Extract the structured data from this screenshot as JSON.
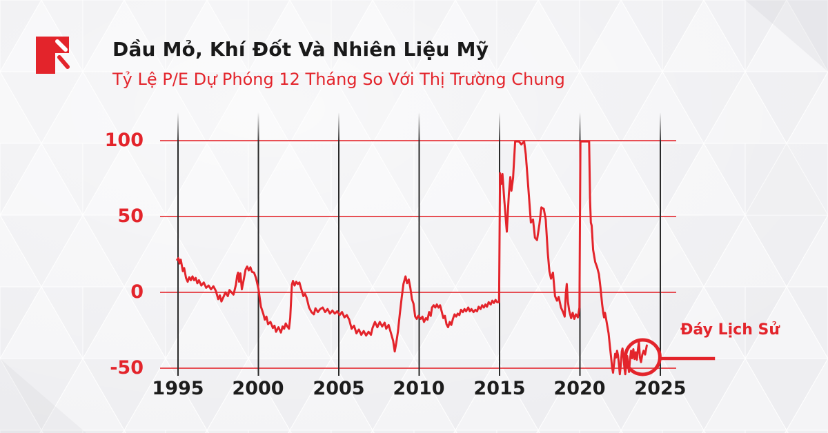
{
  "header": {
    "title": "Dầu Mỏ, Khí Đốt Và Nhiên Liệu Mỹ",
    "subtitle": "Tỷ Lệ P/E Dự Phóng 12 Tháng So Với Thị Trường Chung"
  },
  "colors": {
    "accent_red": "#e3242b",
    "text_dark": "#191919",
    "gridline_red": "rgba(227,37,44,0.8)",
    "axis_line_black": "#2a2a2a",
    "background": "#f1f1f3"
  },
  "chart_data": {
    "type": "line",
    "title": "Dầu Mỏ, Khí Đốt Và Nhiên Liệu Mỹ",
    "subtitle": "Tỷ Lệ P/E Dự Phóng 12 Tháng So Với Thị Trường Chung",
    "xlabel": "",
    "ylabel": "",
    "grid": true,
    "legend": false,
    "xlim": [
      1994.6,
      2028.0
    ],
    "ylim": [
      -57,
      120
    ],
    "y_ticks": [
      "100",
      "50",
      "0",
      "-50"
    ],
    "y_values": [
      100,
      50,
      0,
      -50
    ],
    "x_ticks": [
      "1995",
      "2000",
      "2005",
      "2010",
      "2015",
      "2020",
      "2025"
    ],
    "x_values": [
      1995,
      2000,
      2005,
      2010,
      2015,
      2020,
      2025
    ],
    "annotation": {
      "label": "Đáy Lịch Sử",
      "x": 2023.9,
      "y": -42.7,
      "leader_end_x": 2028.4
    },
    "series": [
      {
        "name": "pe-relative-percent",
        "color": "#e3242b",
        "points": [
          [
            1994.95,
            21.5
          ],
          [
            1995.02,
            22.5
          ],
          [
            1995.1,
            19
          ],
          [
            1995.17,
            21.5
          ],
          [
            1995.3,
            14
          ],
          [
            1995.38,
            16
          ],
          [
            1995.5,
            9.5
          ],
          [
            1995.6,
            7
          ],
          [
            1995.7,
            10
          ],
          [
            1995.8,
            8
          ],
          [
            1995.9,
            10.5
          ],
          [
            1996.0,
            8
          ],
          [
            1996.1,
            9.5
          ],
          [
            1996.2,
            6
          ],
          [
            1996.3,
            8
          ],
          [
            1996.45,
            4.5
          ],
          [
            1996.6,
            6.5
          ],
          [
            1996.75,
            3
          ],
          [
            1996.9,
            4.5
          ],
          [
            1997.05,
            2
          ],
          [
            1997.2,
            4
          ],
          [
            1997.35,
            1
          ],
          [
            1997.5,
            -4.5
          ],
          [
            1997.6,
            -2
          ],
          [
            1997.7,
            -6
          ],
          [
            1997.85,
            -2.5
          ],
          [
            1997.95,
            0
          ],
          [
            1998.1,
            -2.5
          ],
          [
            1998.2,
            1.5
          ],
          [
            1998.45,
            -1.5
          ],
          [
            1998.6,
            5
          ],
          [
            1998.68,
            11
          ],
          [
            1998.74,
            13
          ],
          [
            1998.8,
            7
          ],
          [
            1998.88,
            12.5
          ],
          [
            1998.97,
            2
          ],
          [
            1999.1,
            9
          ],
          [
            1999.2,
            15
          ],
          [
            1999.3,
            17
          ],
          [
            1999.4,
            14.5
          ],
          [
            1999.5,
            16.5
          ],
          [
            1999.6,
            13.5
          ],
          [
            1999.73,
            13
          ],
          [
            1999.85,
            9.5
          ],
          [
            2000.0,
            2.5
          ],
          [
            2000.16,
            -9.5
          ],
          [
            2000.3,
            -14
          ],
          [
            2000.4,
            -18
          ],
          [
            2000.5,
            -16
          ],
          [
            2000.6,
            -21
          ],
          [
            2000.75,
            -19.5
          ],
          [
            2000.9,
            -23.5
          ],
          [
            2001.0,
            -22
          ],
          [
            2001.1,
            -26
          ],
          [
            2001.25,
            -23
          ],
          [
            2001.4,
            -26.5
          ],
          [
            2001.5,
            -22.5
          ],
          [
            2001.6,
            -24
          ],
          [
            2001.7,
            -20.5
          ],
          [
            2001.8,
            -22.5
          ],
          [
            2001.9,
            -24
          ],
          [
            2001.98,
            -17
          ],
          [
            2002.08,
            5
          ],
          [
            2002.15,
            7.5
          ],
          [
            2002.25,
            4.5
          ],
          [
            2002.35,
            7
          ],
          [
            2002.45,
            5.5
          ],
          [
            2002.55,
            6.5
          ],
          [
            2002.67,
            2
          ],
          [
            2002.8,
            -2.5
          ],
          [
            2002.9,
            -1
          ],
          [
            2003.0,
            -3.5
          ],
          [
            2003.15,
            -10
          ],
          [
            2003.3,
            -13
          ],
          [
            2003.45,
            -14.5
          ],
          [
            2003.55,
            -10.5
          ],
          [
            2003.7,
            -13
          ],
          [
            2003.85,
            -11
          ],
          [
            2004.0,
            -10
          ],
          [
            2004.15,
            -13
          ],
          [
            2004.3,
            -11
          ],
          [
            2004.45,
            -14
          ],
          [
            2004.6,
            -12
          ],
          [
            2004.75,
            -14
          ],
          [
            2004.9,
            -12.5
          ],
          [
            2005.05,
            -15
          ],
          [
            2005.2,
            -13
          ],
          [
            2005.35,
            -16.5
          ],
          [
            2005.5,
            -15
          ],
          [
            2005.65,
            -18
          ],
          [
            2005.8,
            -24
          ],
          [
            2005.95,
            -22
          ],
          [
            2006.1,
            -27
          ],
          [
            2006.25,
            -24.5
          ],
          [
            2006.4,
            -28
          ],
          [
            2006.55,
            -25.5
          ],
          [
            2006.7,
            -28.5
          ],
          [
            2006.85,
            -26
          ],
          [
            2007.0,
            -28
          ],
          [
            2007.1,
            -23.5
          ],
          [
            2007.25,
            -19.5
          ],
          [
            2007.4,
            -23
          ],
          [
            2007.55,
            -19.5
          ],
          [
            2007.7,
            -22.5
          ],
          [
            2007.85,
            -20
          ],
          [
            2007.95,
            -24
          ],
          [
            2008.1,
            -21.5
          ],
          [
            2008.25,
            -27
          ],
          [
            2008.38,
            -32
          ],
          [
            2008.48,
            -39
          ],
          [
            2008.58,
            -33
          ],
          [
            2008.68,
            -26
          ],
          [
            2008.8,
            -14
          ],
          [
            2008.92,
            -3
          ],
          [
            2009.02,
            5.5
          ],
          [
            2009.15,
            10.5
          ],
          [
            2009.25,
            6
          ],
          [
            2009.35,
            8.5
          ],
          [
            2009.45,
            3
          ],
          [
            2009.55,
            -4.5
          ],
          [
            2009.65,
            -7.5
          ],
          [
            2009.75,
            -16
          ],
          [
            2009.85,
            -17.5
          ],
          [
            2009.95,
            -15.5
          ],
          [
            2010.1,
            -17.5
          ],
          [
            2010.2,
            -16
          ],
          [
            2010.3,
            -19.5
          ],
          [
            2010.42,
            -17
          ],
          [
            2010.52,
            -18
          ],
          [
            2010.62,
            -13
          ],
          [
            2010.72,
            -15.5
          ],
          [
            2010.8,
            -10
          ],
          [
            2010.9,
            -8.5
          ],
          [
            2011.0,
            -10
          ],
          [
            2011.1,
            -8
          ],
          [
            2011.2,
            -10
          ],
          [
            2011.3,
            -8.5
          ],
          [
            2011.4,
            -12.5
          ],
          [
            2011.5,
            -17
          ],
          [
            2011.6,
            -15.5
          ],
          [
            2011.7,
            -21
          ],
          [
            2011.8,
            -23
          ],
          [
            2011.9,
            -19.5
          ],
          [
            2012.0,
            -21.5
          ],
          [
            2012.1,
            -17.5
          ],
          [
            2012.2,
            -14.5
          ],
          [
            2012.3,
            -16
          ],
          [
            2012.4,
            -14
          ],
          [
            2012.5,
            -15
          ],
          [
            2012.6,
            -11.5
          ],
          [
            2012.72,
            -13
          ],
          [
            2012.82,
            -11
          ],
          [
            2012.92,
            -12.5
          ],
          [
            2013.05,
            -10
          ],
          [
            2013.15,
            -12.5
          ],
          [
            2013.25,
            -11
          ],
          [
            2013.38,
            -13
          ],
          [
            2013.5,
            -11.5
          ],
          [
            2013.6,
            -12.5
          ],
          [
            2013.7,
            -9.5
          ],
          [
            2013.82,
            -11
          ],
          [
            2013.92,
            -8.5
          ],
          [
            2014.02,
            -10
          ],
          [
            2014.12,
            -8
          ],
          [
            2014.22,
            -9.5
          ],
          [
            2014.32,
            -6.5
          ],
          [
            2014.45,
            -8
          ],
          [
            2014.55,
            -5.5
          ],
          [
            2014.65,
            -7
          ],
          [
            2014.75,
            -5
          ],
          [
            2014.85,
            -6.5
          ],
          [
            2014.97,
            -6.5
          ],
          [
            2015.03,
            78.5
          ],
          [
            2015.1,
            71.5
          ],
          [
            2015.18,
            78
          ],
          [
            2015.3,
            60
          ],
          [
            2015.45,
            40
          ],
          [
            2015.58,
            65
          ],
          [
            2015.67,
            76
          ],
          [
            2015.74,
            67
          ],
          [
            2015.84,
            75.5
          ],
          [
            2015.97,
            99.5
          ],
          [
            2016.2,
            99.5
          ],
          [
            2016.35,
            97.5
          ],
          [
            2016.53,
            99.5
          ],
          [
            2016.63,
            91
          ],
          [
            2016.78,
            70
          ],
          [
            2016.95,
            46
          ],
          [
            2017.08,
            48
          ],
          [
            2017.2,
            36
          ],
          [
            2017.33,
            34.5
          ],
          [
            2017.48,
            45
          ],
          [
            2017.6,
            56
          ],
          [
            2017.75,
            55
          ],
          [
            2017.87,
            48
          ],
          [
            2018.0,
            26
          ],
          [
            2018.1,
            14
          ],
          [
            2018.2,
            9
          ],
          [
            2018.32,
            13
          ],
          [
            2018.45,
            -2.5
          ],
          [
            2018.57,
            -5.5
          ],
          [
            2018.68,
            -3
          ],
          [
            2018.82,
            -10
          ],
          [
            2018.95,
            -13
          ],
          [
            2019.05,
            -16
          ],
          [
            2019.12,
            -1
          ],
          [
            2019.18,
            5.5
          ],
          [
            2019.25,
            -6
          ],
          [
            2019.33,
            -12
          ],
          [
            2019.45,
            -17
          ],
          [
            2019.55,
            -13.5
          ],
          [
            2019.65,
            -17.5
          ],
          [
            2019.75,
            -14.5
          ],
          [
            2019.87,
            -16.5
          ],
          [
            2019.97,
            -10
          ],
          [
            2020.03,
            99.5
          ],
          [
            2020.3,
            99.5
          ],
          [
            2020.57,
            99.5
          ],
          [
            2020.63,
            60
          ],
          [
            2020.68,
            46
          ],
          [
            2020.73,
            44
          ],
          [
            2020.82,
            28
          ],
          [
            2020.95,
            20
          ],
          [
            2021.07,
            16.5
          ],
          [
            2021.18,
            12
          ],
          [
            2021.28,
            3
          ],
          [
            2021.38,
            -8
          ],
          [
            2021.45,
            -13.5
          ],
          [
            2021.5,
            -16.5
          ],
          [
            2021.56,
            -13.5
          ],
          [
            2021.62,
            -17
          ],
          [
            2021.7,
            -22
          ],
          [
            2021.78,
            -27
          ],
          [
            2021.86,
            -35
          ],
          [
            2021.94,
            -43
          ],
          [
            2022.0,
            -49.5
          ],
          [
            2022.06,
            -53
          ],
          [
            2022.13,
            -46.5
          ],
          [
            2022.19,
            -40.5
          ],
          [
            2022.25,
            -43
          ],
          [
            2022.31,
            -38.5
          ],
          [
            2022.37,
            -41.5
          ],
          [
            2022.43,
            -48
          ],
          [
            2022.48,
            -54
          ],
          [
            2022.54,
            -48
          ],
          [
            2022.6,
            -39
          ],
          [
            2022.65,
            -37
          ],
          [
            2022.71,
            -43
          ],
          [
            2022.77,
            -50
          ],
          [
            2022.82,
            -54
          ],
          [
            2022.88,
            -47
          ],
          [
            2022.94,
            -42
          ],
          [
            2023.0,
            -48
          ],
          [
            2023.05,
            -52.5
          ],
          [
            2023.12,
            -43.5
          ],
          [
            2023.18,
            -38.5
          ],
          [
            2023.25,
            -43.5
          ],
          [
            2023.32,
            -37.5
          ],
          [
            2023.4,
            -44
          ],
          [
            2023.47,
            -39.5
          ],
          [
            2023.54,
            -44.5
          ],
          [
            2023.6,
            -38
          ],
          [
            2023.67,
            -32.5
          ],
          [
            2023.73,
            -43
          ],
          [
            2023.8,
            -46
          ],
          [
            2023.88,
            -41
          ],
          [
            2023.96,
            -38.5
          ],
          [
            2024.05,
            -41
          ],
          [
            2024.16,
            -35
          ]
        ]
      }
    ]
  }
}
